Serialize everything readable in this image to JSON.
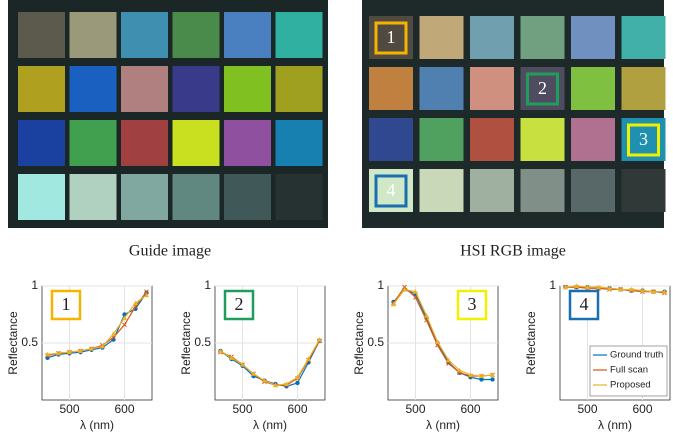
{
  "images": {
    "guide_caption": "Guide image",
    "hsi_caption": "HSI RGB image",
    "markers": [
      "1",
      "2",
      "3",
      "4"
    ]
  },
  "chart_data": [
    {
      "type": "line",
      "annotation": {
        "text": "1",
        "color": "#f5b400"
      },
      "xlabel": "λ (nm)",
      "ylabel": "Reflectance",
      "xlim": [
        450,
        650
      ],
      "xticks": [
        500,
        600
      ],
      "ylim": [
        0,
        1
      ],
      "yticks": [
        0.5,
        1
      ],
      "grid": true,
      "x": [
        460,
        480,
        500,
        520,
        540,
        560,
        580,
        600,
        620,
        640
      ],
      "series": [
        {
          "name": "Ground truth",
          "color": "#0072bd",
          "values": [
            0.37,
            0.4,
            0.41,
            0.42,
            0.44,
            0.46,
            0.53,
            0.75,
            0.8,
            0.94
          ]
        },
        {
          "name": "Full scan",
          "color": "#d95319",
          "values": [
            0.39,
            0.41,
            0.42,
            0.43,
            0.45,
            0.48,
            0.55,
            0.66,
            0.82,
            0.95
          ]
        },
        {
          "name": "Proposed",
          "color": "#edb120",
          "values": [
            0.4,
            0.41,
            0.42,
            0.43,
            0.45,
            0.47,
            0.58,
            0.72,
            0.85,
            0.92
          ]
        }
      ]
    },
    {
      "type": "line",
      "annotation": {
        "text": "2",
        "color": "#1e9e5a"
      },
      "xlabel": "λ (nm)",
      "ylabel": "Reflectance",
      "xlim": [
        450,
        650
      ],
      "xticks": [
        500,
        600
      ],
      "ylim": [
        0,
        1
      ],
      "yticks": [
        0.5,
        1
      ],
      "grid": true,
      "x": [
        460,
        480,
        500,
        520,
        540,
        560,
        580,
        600,
        620,
        640
      ],
      "series": [
        {
          "name": "Ground truth",
          "color": "#0072bd",
          "values": [
            0.43,
            0.36,
            0.3,
            0.21,
            0.17,
            0.14,
            0.12,
            0.15,
            0.33,
            0.52
          ]
        },
        {
          "name": "Full scan",
          "color": "#d95319",
          "values": [
            0.42,
            0.38,
            0.31,
            0.23,
            0.16,
            0.13,
            0.13,
            0.19,
            0.35,
            0.52
          ]
        },
        {
          "name": "Proposed",
          "color": "#edb120",
          "values": [
            0.43,
            0.37,
            0.31,
            0.23,
            0.17,
            0.13,
            0.14,
            0.2,
            0.36,
            0.53
          ]
        }
      ]
    },
    {
      "type": "line",
      "annotation": {
        "text": "3",
        "color": "#f0f000"
      },
      "xlabel": "λ (nm)",
      "ylabel": "Reflectance",
      "xlim": [
        450,
        650
      ],
      "xticks": [
        500,
        600
      ],
      "ylim": [
        0,
        1
      ],
      "yticks": [
        0.5,
        1
      ],
      "grid": true,
      "x": [
        460,
        480,
        500,
        520,
        540,
        560,
        580,
        600,
        620,
        640
      ],
      "series": [
        {
          "name": "Ground truth",
          "color": "#0072bd",
          "values": [
            0.86,
            0.97,
            0.93,
            0.72,
            0.5,
            0.33,
            0.24,
            0.2,
            0.18,
            0.18
          ]
        },
        {
          "name": "Full scan",
          "color": "#d95319",
          "values": [
            0.85,
            0.99,
            0.9,
            0.7,
            0.48,
            0.32,
            0.24,
            0.21,
            0.21,
            0.22
          ]
        },
        {
          "name": "Proposed",
          "color": "#edb120",
          "values": [
            0.84,
            0.97,
            0.95,
            0.74,
            0.51,
            0.35,
            0.26,
            0.22,
            0.21,
            0.22
          ]
        }
      ]
    },
    {
      "type": "line",
      "annotation": {
        "text": "4",
        "color": "#1a6fb0"
      },
      "xlabel": "λ (nm)",
      "ylabel": "Reflectance",
      "xlim": [
        450,
        650
      ],
      "xticks": [
        500,
        600
      ],
      "ylim": [
        0,
        1
      ],
      "yticks": [
        1
      ],
      "grid": true,
      "legend": "lower right",
      "x": [
        460,
        480,
        500,
        520,
        540,
        560,
        580,
        600,
        620,
        640
      ],
      "series": [
        {
          "name": "Ground truth",
          "color": "#0072bd",
          "values": [
            0.99,
            0.99,
            0.99,
            0.98,
            0.98,
            0.97,
            0.96,
            0.96,
            0.95,
            0.95
          ]
        },
        {
          "name": "Full scan",
          "color": "#d95319",
          "values": [
            0.99,
            0.99,
            0.98,
            0.98,
            0.97,
            0.97,
            0.96,
            0.95,
            0.95,
            0.94
          ]
        },
        {
          "name": "Proposed",
          "color": "#edb120",
          "values": [
            0.99,
            1.0,
            0.99,
            0.99,
            0.98,
            0.97,
            0.97,
            0.96,
            0.95,
            0.95
          ]
        }
      ]
    }
  ]
}
